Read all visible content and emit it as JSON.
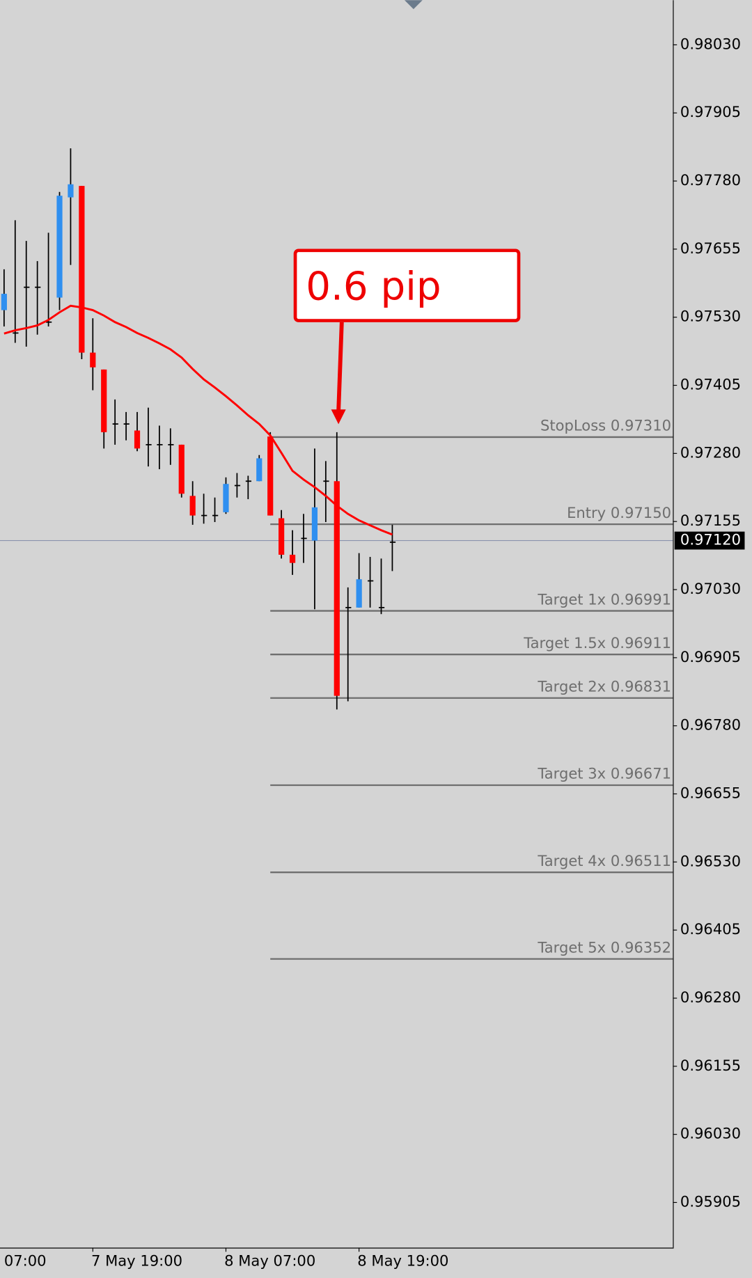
{
  "chart_data": {
    "type": "candlestick",
    "categories": [
      null,
      null,
      null,
      null,
      null,
      null,
      null,
      null,
      "7 May 19:00",
      null,
      null,
      null,
      null,
      null,
      null,
      null,
      null,
      null,
      null,
      null,
      "8 May 07:00",
      null,
      null,
      null,
      null,
      null,
      null,
      null,
      null,
      null,
      null,
      null,
      "8 May 19:00",
      null,
      null,
      null
    ],
    "x_clipped_label": "07:00",
    "open": [
      0.97543,
      0.97501,
      0.97585,
      0.97585,
      0.97521,
      0.97566,
      0.9775,
      0.97771,
      0.97465,
      0.97434,
      0.97334,
      0.97334,
      0.97322,
      0.97296,
      0.97296,
      0.97296,
      0.97296,
      0.97202,
      0.97166,
      0.97166,
      0.97172,
      0.97221,
      0.97229,
      0.97229,
      0.97311,
      0.97161,
      0.97094,
      0.97124,
      0.9712,
      0.97229,
      0.97229,
      0.96997,
      0.96997,
      0.97046,
      0.96997,
      0.97117
    ],
    "high": [
      0.97618,
      0.97708,
      0.9767,
      0.97633,
      0.97685,
      0.9776,
      0.9784,
      0.97771,
      0.97528,
      0.97434,
      0.97379,
      0.97356,
      0.97356,
      0.97364,
      0.97331,
      0.97326,
      0.97296,
      0.97229,
      0.97206,
      0.97199,
      0.97236,
      0.97244,
      0.97239,
      0.97277,
      0.97319,
      0.97176,
      0.97139,
      0.97169,
      0.97289,
      0.97266,
      0.97319,
      0.97034,
      0.97097,
      0.9709,
      0.97087,
      0.97149
    ],
    "low": [
      0.97513,
      0.97483,
      0.97476,
      0.97498,
      0.97513,
      0.97543,
      0.97626,
      0.97453,
      0.97396,
      0.97289,
      0.97296,
      0.97304,
      0.97284,
      0.97256,
      0.97251,
      0.97259,
      0.97199,
      0.97149,
      0.97151,
      0.97154,
      0.97169,
      0.97199,
      0.97196,
      0.97229,
      0.97166,
      0.97087,
      0.97057,
      0.97079,
      0.96994,
      0.97154,
      0.9681,
      0.96825,
      0.96997,
      0.96997,
      0.96985,
      0.97064
    ],
    "close": [
      0.97573,
      0.97501,
      0.97585,
      0.97585,
      0.97521,
      0.97753,
      0.97774,
      0.97465,
      0.97438,
      0.97319,
      0.97334,
      0.97334,
      0.97289,
      0.97296,
      0.97296,
      0.97296,
      0.97206,
      0.97166,
      0.97166,
      0.97166,
      0.97224,
      0.97221,
      0.97229,
      0.97271,
      0.97166,
      0.97094,
      0.97079,
      0.97124,
      0.97181,
      0.97229,
      0.96835,
      0.96997,
      0.97049,
      0.97046,
      0.96997,
      0.97117
    ],
    "colors": {
      "up": "#2f8ff0",
      "down": "#ff0000",
      "flat": "#000000",
      "wick": "#000000"
    },
    "moving_average": {
      "color": "#ff0000",
      "values": [
        0.975,
        0.97506,
        0.9751,
        0.97515,
        0.97525,
        0.97539,
        0.97551,
        0.97548,
        0.97543,
        0.97533,
        0.97521,
        0.97512,
        0.97501,
        0.97492,
        0.97482,
        0.97471,
        0.97456,
        0.97435,
        0.97416,
        0.97401,
        0.97385,
        0.97368,
        0.9735,
        0.97334,
        0.97313,
        0.97281,
        0.97248,
        0.97232,
        0.97218,
        0.97202,
        0.97184,
        0.97169,
        0.97157,
        0.97148,
        0.97139,
        0.97131
      ]
    },
    "levels": [
      {
        "value": 0.9731,
        "label": "StopLoss 0.97310"
      },
      {
        "value": 0.9715,
        "label": "Entry 0.97150"
      },
      {
        "value": 0.96991,
        "label": "Target 1x 0.96991"
      },
      {
        "value": 0.96911,
        "label": "Target 1.5x 0.96911"
      },
      {
        "value": 0.96831,
        "label": "Target 2x 0.96831"
      },
      {
        "value": 0.96671,
        "label": "Target 3x 0.96671"
      },
      {
        "value": 0.96511,
        "label": "Target 4x 0.96511"
      },
      {
        "value": 0.96352,
        "label": "Target 5x 0.96352"
      }
    ],
    "levels_start_index": 24,
    "level_color": "#6e6e6e",
    "current_price": {
      "value": 0.9712,
      "label": "0.97120"
    },
    "annotation": "0.6 pip",
    "ylim": [
      0.95822,
      0.98112
    ],
    "yticks": [
      {
        "value": 0.9803,
        "label": "0.98030"
      },
      0.97905,
      {
        "value": 0.9778,
        "label": "0.97780"
      },
      0.97655,
      {
        "value": 0.9753,
        "label": "0.97530"
      },
      0.97405,
      {
        "value": 0.9728,
        "label": "0.97280"
      },
      0.97155,
      {
        "value": 0.9703,
        "label": "0.97030"
      },
      0.96905,
      {
        "value": 0.9678,
        "label": "0.96780"
      },
      0.96655,
      {
        "value": 0.9653,
        "label": "0.96530"
      },
      0.96405,
      {
        "value": 0.9628,
        "label": "0.96280"
      },
      0.96155,
      {
        "value": 0.9603,
        "label": "0.96030"
      },
      0.95905
    ]
  }
}
